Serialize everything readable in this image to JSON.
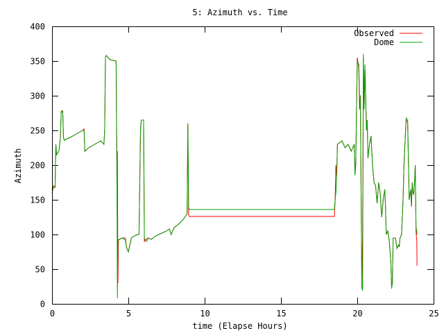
{
  "chart_data": {
    "type": "line",
    "title": "5: Azimuth vs. Time",
    "xlabel": "time (Elapse Hours)",
    "ylabel": "Azimuth",
    "xlim": [
      0,
      25
    ],
    "ylim": [
      0,
      400
    ],
    "xticks": [
      0,
      5,
      10,
      15,
      20,
      25
    ],
    "yticks": [
      0,
      50,
      100,
      150,
      200,
      250,
      300,
      350,
      400
    ],
    "grid": false,
    "legend_position": "top-right",
    "series": [
      {
        "name": "Observed",
        "color": "#ff0000",
        "points": [
          [
            0.0,
            165
          ],
          [
            0.1,
            170
          ],
          [
            0.2,
            168
          ],
          [
            0.25,
            230
          ],
          [
            0.3,
            215
          ],
          [
            0.45,
            220
          ],
          [
            0.55,
            240
          ],
          [
            0.6,
            275
          ],
          [
            0.7,
            278
          ],
          [
            0.75,
            240
          ],
          [
            0.8,
            236
          ],
          [
            1.2,
            240
          ],
          [
            1.6,
            245
          ],
          [
            2.0,
            250
          ],
          [
            2.1,
            252
          ],
          [
            2.15,
            220
          ],
          [
            2.4,
            225
          ],
          [
            2.8,
            230
          ],
          [
            3.2,
            235
          ],
          [
            3.4,
            230
          ],
          [
            3.45,
            250
          ],
          [
            3.5,
            355
          ],
          [
            3.55,
            358
          ],
          [
            3.8,
            352
          ],
          [
            4.2,
            350
          ],
          [
            4.25,
            180
          ],
          [
            4.28,
            220
          ],
          [
            4.32,
            30
          ],
          [
            4.35,
            92
          ],
          [
            4.6,
            95
          ],
          [
            4.8,
            95
          ],
          [
            4.9,
            80
          ],
          [
            5.0,
            75
          ],
          [
            5.2,
            95
          ],
          [
            5.4,
            98
          ],
          [
            5.6,
            100
          ],
          [
            5.7,
            100
          ],
          [
            5.8,
            250
          ],
          [
            5.85,
            265
          ],
          [
            6.0,
            265
          ],
          [
            6.05,
            90
          ],
          [
            6.1,
            92
          ],
          [
            6.3,
            95
          ],
          [
            6.5,
            93
          ],
          [
            6.8,
            98
          ],
          [
            7.2,
            102
          ],
          [
            7.5,
            105
          ],
          [
            7.7,
            108
          ],
          [
            7.8,
            100
          ],
          [
            8.0,
            110
          ],
          [
            8.3,
            115
          ],
          [
            8.6,
            122
          ],
          [
            8.8,
            128
          ],
          [
            8.85,
            130
          ],
          [
            8.9,
            260
          ],
          [
            8.95,
            128
          ],
          [
            9.0,
            126
          ],
          [
            10,
            126
          ],
          [
            12,
            126
          ],
          [
            14,
            126
          ],
          [
            16,
            126
          ],
          [
            18,
            126
          ],
          [
            18.5,
            126
          ],
          [
            18.55,
            150
          ],
          [
            18.6,
            200
          ],
          [
            18.65,
            185
          ],
          [
            18.7,
            230
          ],
          [
            19.0,
            235
          ],
          [
            19.2,
            225
          ],
          [
            19.4,
            230
          ],
          [
            19.5,
            225
          ],
          [
            19.6,
            220
          ],
          [
            19.8,
            230
          ],
          [
            19.85,
            190
          ],
          [
            19.9,
            200
          ],
          [
            19.95,
            280
          ],
          [
            20.0,
            355
          ],
          [
            20.1,
            340
          ],
          [
            20.15,
            280
          ],
          [
            20.2,
            300
          ],
          [
            20.3,
            25
          ],
          [
            20.35,
            102
          ],
          [
            20.4,
            355
          ],
          [
            20.45,
            280
          ],
          [
            20.5,
            340
          ],
          [
            20.55,
            300
          ],
          [
            20.6,
            250
          ],
          [
            20.65,
            265
          ],
          [
            20.7,
            210
          ],
          [
            20.8,
            230
          ],
          [
            20.9,
            242
          ],
          [
            21.0,
            200
          ],
          [
            21.1,
            175
          ],
          [
            21.2,
            170
          ],
          [
            21.3,
            145
          ],
          [
            21.4,
            175
          ],
          [
            21.5,
            160
          ],
          [
            21.6,
            125
          ],
          [
            21.7,
            150
          ],
          [
            21.8,
            165
          ],
          [
            21.85,
            140
          ],
          [
            21.9,
            100
          ],
          [
            22.0,
            105
          ],
          [
            22.1,
            90
          ],
          [
            22.2,
            60
          ],
          [
            22.25,
            25
          ],
          [
            22.3,
            30
          ],
          [
            22.35,
            95
          ],
          [
            22.5,
            95
          ],
          [
            22.6,
            80
          ],
          [
            22.7,
            85
          ],
          [
            22.75,
            82
          ],
          [
            22.8,
            95
          ],
          [
            22.9,
            100
          ],
          [
            23.0,
            150
          ],
          [
            23.05,
            195
          ],
          [
            23.1,
            220
          ],
          [
            23.2,
            265
          ],
          [
            23.3,
            262
          ],
          [
            23.4,
            150
          ],
          [
            23.5,
            165
          ],
          [
            23.55,
            140
          ],
          [
            23.6,
            175
          ],
          [
            23.65,
            160
          ],
          [
            23.7,
            158
          ],
          [
            23.75,
            175
          ],
          [
            23.8,
            200
          ],
          [
            23.85,
            105
          ],
          [
            23.9,
            90
          ],
          [
            23.92,
            55
          ]
        ]
      },
      {
        "name": "Dome",
        "color": "#00a000",
        "points": [
          [
            0.0,
            160
          ],
          [
            0.1,
            168
          ],
          [
            0.2,
            168
          ],
          [
            0.25,
            230
          ],
          [
            0.3,
            215
          ],
          [
            0.45,
            220
          ],
          [
            0.55,
            240
          ],
          [
            0.6,
            278
          ],
          [
            0.7,
            278
          ],
          [
            0.75,
            240
          ],
          [
            0.8,
            236
          ],
          [
            1.2,
            240
          ],
          [
            1.6,
            245
          ],
          [
            2.0,
            250
          ],
          [
            2.1,
            250
          ],
          [
            2.15,
            220
          ],
          [
            2.4,
            225
          ],
          [
            2.8,
            230
          ],
          [
            3.2,
            235
          ],
          [
            3.4,
            230
          ],
          [
            3.45,
            250
          ],
          [
            3.5,
            355
          ],
          [
            3.55,
            358
          ],
          [
            3.8,
            352
          ],
          [
            4.2,
            350
          ],
          [
            4.25,
            200
          ],
          [
            4.28,
            8
          ],
          [
            4.32,
            92
          ],
          [
            4.6,
            95
          ],
          [
            4.8,
            92
          ],
          [
            4.9,
            80
          ],
          [
            5.0,
            75
          ],
          [
            5.2,
            95
          ],
          [
            5.4,
            98
          ],
          [
            5.6,
            100
          ],
          [
            5.7,
            100
          ],
          [
            5.8,
            255
          ],
          [
            5.85,
            265
          ],
          [
            6.0,
            265
          ],
          [
            6.05,
            95
          ],
          [
            6.1,
            92
          ],
          [
            6.2,
            90
          ],
          [
            6.3,
            95
          ],
          [
            6.5,
            93
          ],
          [
            6.8,
            98
          ],
          [
            7.2,
            102
          ],
          [
            7.5,
            105
          ],
          [
            7.7,
            108
          ],
          [
            7.8,
            100
          ],
          [
            8.0,
            110
          ],
          [
            8.3,
            115
          ],
          [
            8.6,
            122
          ],
          [
            8.8,
            128
          ],
          [
            8.85,
            130
          ],
          [
            8.9,
            260
          ],
          [
            8.95,
            140
          ],
          [
            9.0,
            136
          ],
          [
            10,
            136
          ],
          [
            12,
            136
          ],
          [
            14,
            136
          ],
          [
            16,
            136
          ],
          [
            18,
            136
          ],
          [
            18.5,
            136
          ],
          [
            18.55,
            150
          ],
          [
            18.6,
            160
          ],
          [
            18.65,
            185
          ],
          [
            18.7,
            230
          ],
          [
            19.0,
            235
          ],
          [
            19.2,
            225
          ],
          [
            19.4,
            230
          ],
          [
            19.5,
            225
          ],
          [
            19.6,
            220
          ],
          [
            19.8,
            230
          ],
          [
            19.85,
            185
          ],
          [
            19.9,
            200
          ],
          [
            19.95,
            280
          ],
          [
            20.0,
            350
          ],
          [
            20.1,
            345
          ],
          [
            20.15,
            300
          ],
          [
            20.2,
            300
          ],
          [
            20.3,
            22
          ],
          [
            20.35,
            20
          ],
          [
            20.4,
            360
          ],
          [
            20.45,
            280
          ],
          [
            20.5,
            345
          ],
          [
            20.55,
            300
          ],
          [
            20.6,
            250
          ],
          [
            20.65,
            265
          ],
          [
            20.7,
            210
          ],
          [
            20.8,
            230
          ],
          [
            20.9,
            242
          ],
          [
            21.0,
            200
          ],
          [
            21.1,
            175
          ],
          [
            21.2,
            170
          ],
          [
            21.3,
            145
          ],
          [
            21.4,
            175
          ],
          [
            21.5,
            160
          ],
          [
            21.6,
            125
          ],
          [
            21.7,
            150
          ],
          [
            21.8,
            165
          ],
          [
            21.85,
            140
          ],
          [
            21.9,
            100
          ],
          [
            22.0,
            105
          ],
          [
            22.1,
            90
          ],
          [
            22.2,
            60
          ],
          [
            22.25,
            22
          ],
          [
            22.3,
            30
          ],
          [
            22.35,
            95
          ],
          [
            22.5,
            95
          ],
          [
            22.6,
            80
          ],
          [
            22.7,
            85
          ],
          [
            22.75,
            82
          ],
          [
            22.8,
            95
          ],
          [
            22.9,
            100
          ],
          [
            23.0,
            150
          ],
          [
            23.05,
            195
          ],
          [
            23.1,
            220
          ],
          [
            23.2,
            268
          ],
          [
            23.3,
            265
          ],
          [
            23.4,
            150
          ],
          [
            23.5,
            165
          ],
          [
            23.55,
            140
          ],
          [
            23.6,
            175
          ],
          [
            23.65,
            160
          ],
          [
            23.7,
            158
          ],
          [
            23.75,
            175
          ],
          [
            23.8,
            200
          ],
          [
            23.85,
            110
          ],
          [
            23.9,
            105
          ],
          [
            23.92,
            100
          ]
        ]
      }
    ]
  }
}
